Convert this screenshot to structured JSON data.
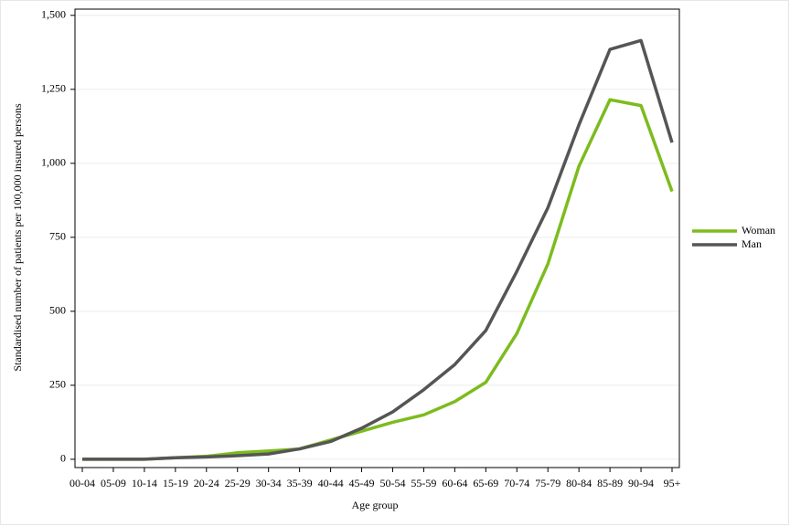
{
  "chart_data": {
    "type": "line",
    "x_label": "Age group",
    "y_label": "Standardised number of patients per 100,000 insured persons",
    "categories": [
      "00-04",
      "05-09",
      "10-14",
      "15-19",
      "20-24",
      "25-29",
      "30-34",
      "35-39",
      "40-44",
      "45-49",
      "50-54",
      "55-59",
      "60-64",
      "65-69",
      "70-74",
      "75-79",
      "80-84",
      "85-89",
      "90-94",
      "95+"
    ],
    "series": [
      {
        "name": "Woman",
        "color": "#7cbc1e",
        "values": [
          0,
          0,
          0,
          5,
          10,
          22,
          28,
          35,
          65,
          95,
          125,
          150,
          195,
          260,
          425,
          660,
          990,
          1215,
          1195,
          905
        ]
      },
      {
        "name": "Man",
        "color": "#555555",
        "values": [
          0,
          0,
          0,
          5,
          8,
          12,
          18,
          35,
          60,
          105,
          160,
          235,
          320,
          435,
          635,
          850,
          1130,
          1385,
          1415,
          1070
        ]
      }
    ],
    "ylim": [
      -28,
      1521
    ],
    "yticks": [
      0,
      250,
      500,
      750,
      {
        "value": 1000,
        "label": "1,000"
      },
      {
        "value": 1250,
        "label": "1,250"
      },
      {
        "value": 1500,
        "label": "1,500"
      }
    ],
    "grid": true,
    "legend": "right"
  }
}
